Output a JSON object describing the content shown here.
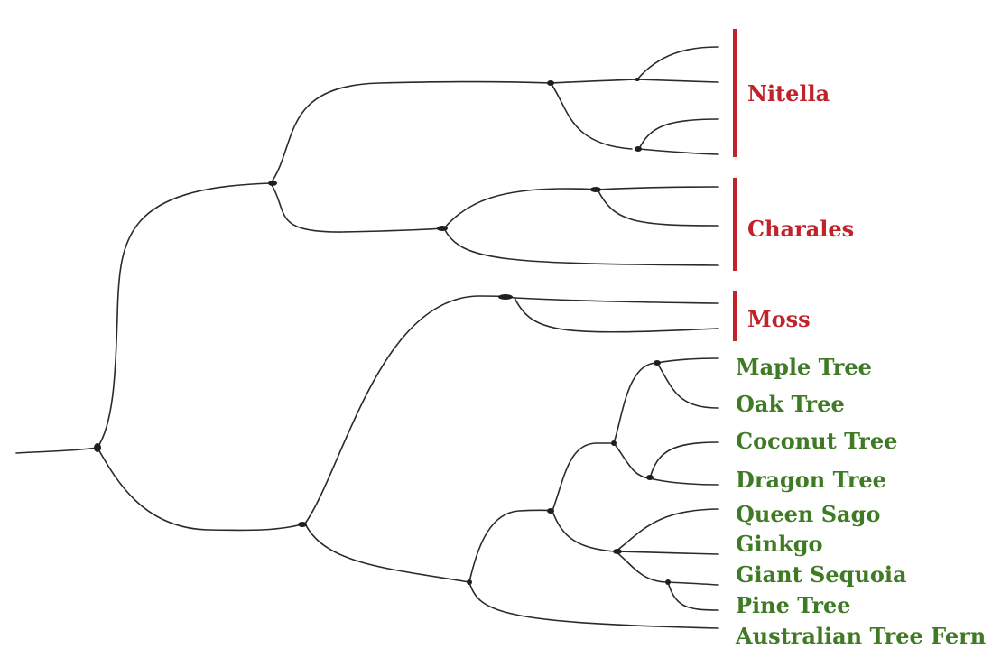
{
  "groups": [
    {
      "label": "Nitella",
      "color": "#c0232b"
    },
    {
      "label": "Charales",
      "color": "#c0232b"
    },
    {
      "label": "Moss",
      "color": "#c0232b"
    }
  ],
  "species": [
    {
      "label": "Maple Tree"
    },
    {
      "label": "Oak Tree"
    },
    {
      "label": "Coconut Tree"
    },
    {
      "label": "Dragon Tree"
    },
    {
      "label": "Queen Sago"
    },
    {
      "label": "Ginkgo"
    },
    {
      "label": "Giant Sequoia"
    },
    {
      "label": "Pine Tree"
    },
    {
      "label": "Australian Tree Fern"
    }
  ],
  "colors": {
    "branch": "#2a2a2a",
    "group_label": "#c0232b",
    "species_label": "#3f7a24"
  }
}
